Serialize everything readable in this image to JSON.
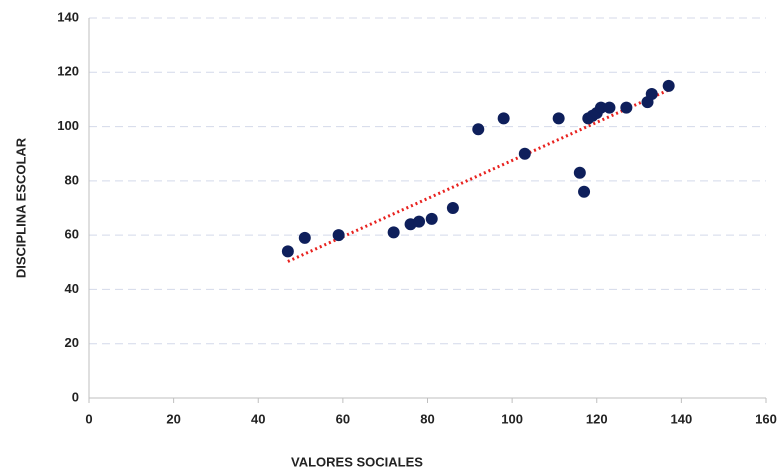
{
  "chart_data": {
    "type": "scatter",
    "x_label": "VALORES SOCIALES",
    "y_label": "DISCIPLINA ESCOLAR",
    "x": [
      47,
      51,
      59,
      72,
      76,
      78,
      81,
      86,
      92,
      98,
      103,
      111,
      116,
      117,
      118,
      119,
      120,
      121,
      123,
      127,
      132,
      133,
      137
    ],
    "values": [
      54,
      59,
      60,
      61,
      64,
      65,
      66,
      70,
      99,
      103,
      90,
      103,
      83,
      76,
      103,
      104,
      105,
      107,
      107,
      107,
      109,
      112,
      115
    ],
    "color": "#0e1f5b",
    "trendline": {
      "x": [
        47,
        137
      ],
      "values": [
        50.3,
        113.5
      ],
      "color": "#e8221f"
    },
    "xlim": [
      0,
      160
    ],
    "xticks": [
      0,
      20,
      40,
      60,
      80,
      100,
      120,
      140,
      160
    ],
    "ylim": [
      0,
      140
    ],
    "yticks": [
      0,
      20,
      40,
      60,
      80,
      100,
      120,
      140
    ],
    "grid": true
  }
}
